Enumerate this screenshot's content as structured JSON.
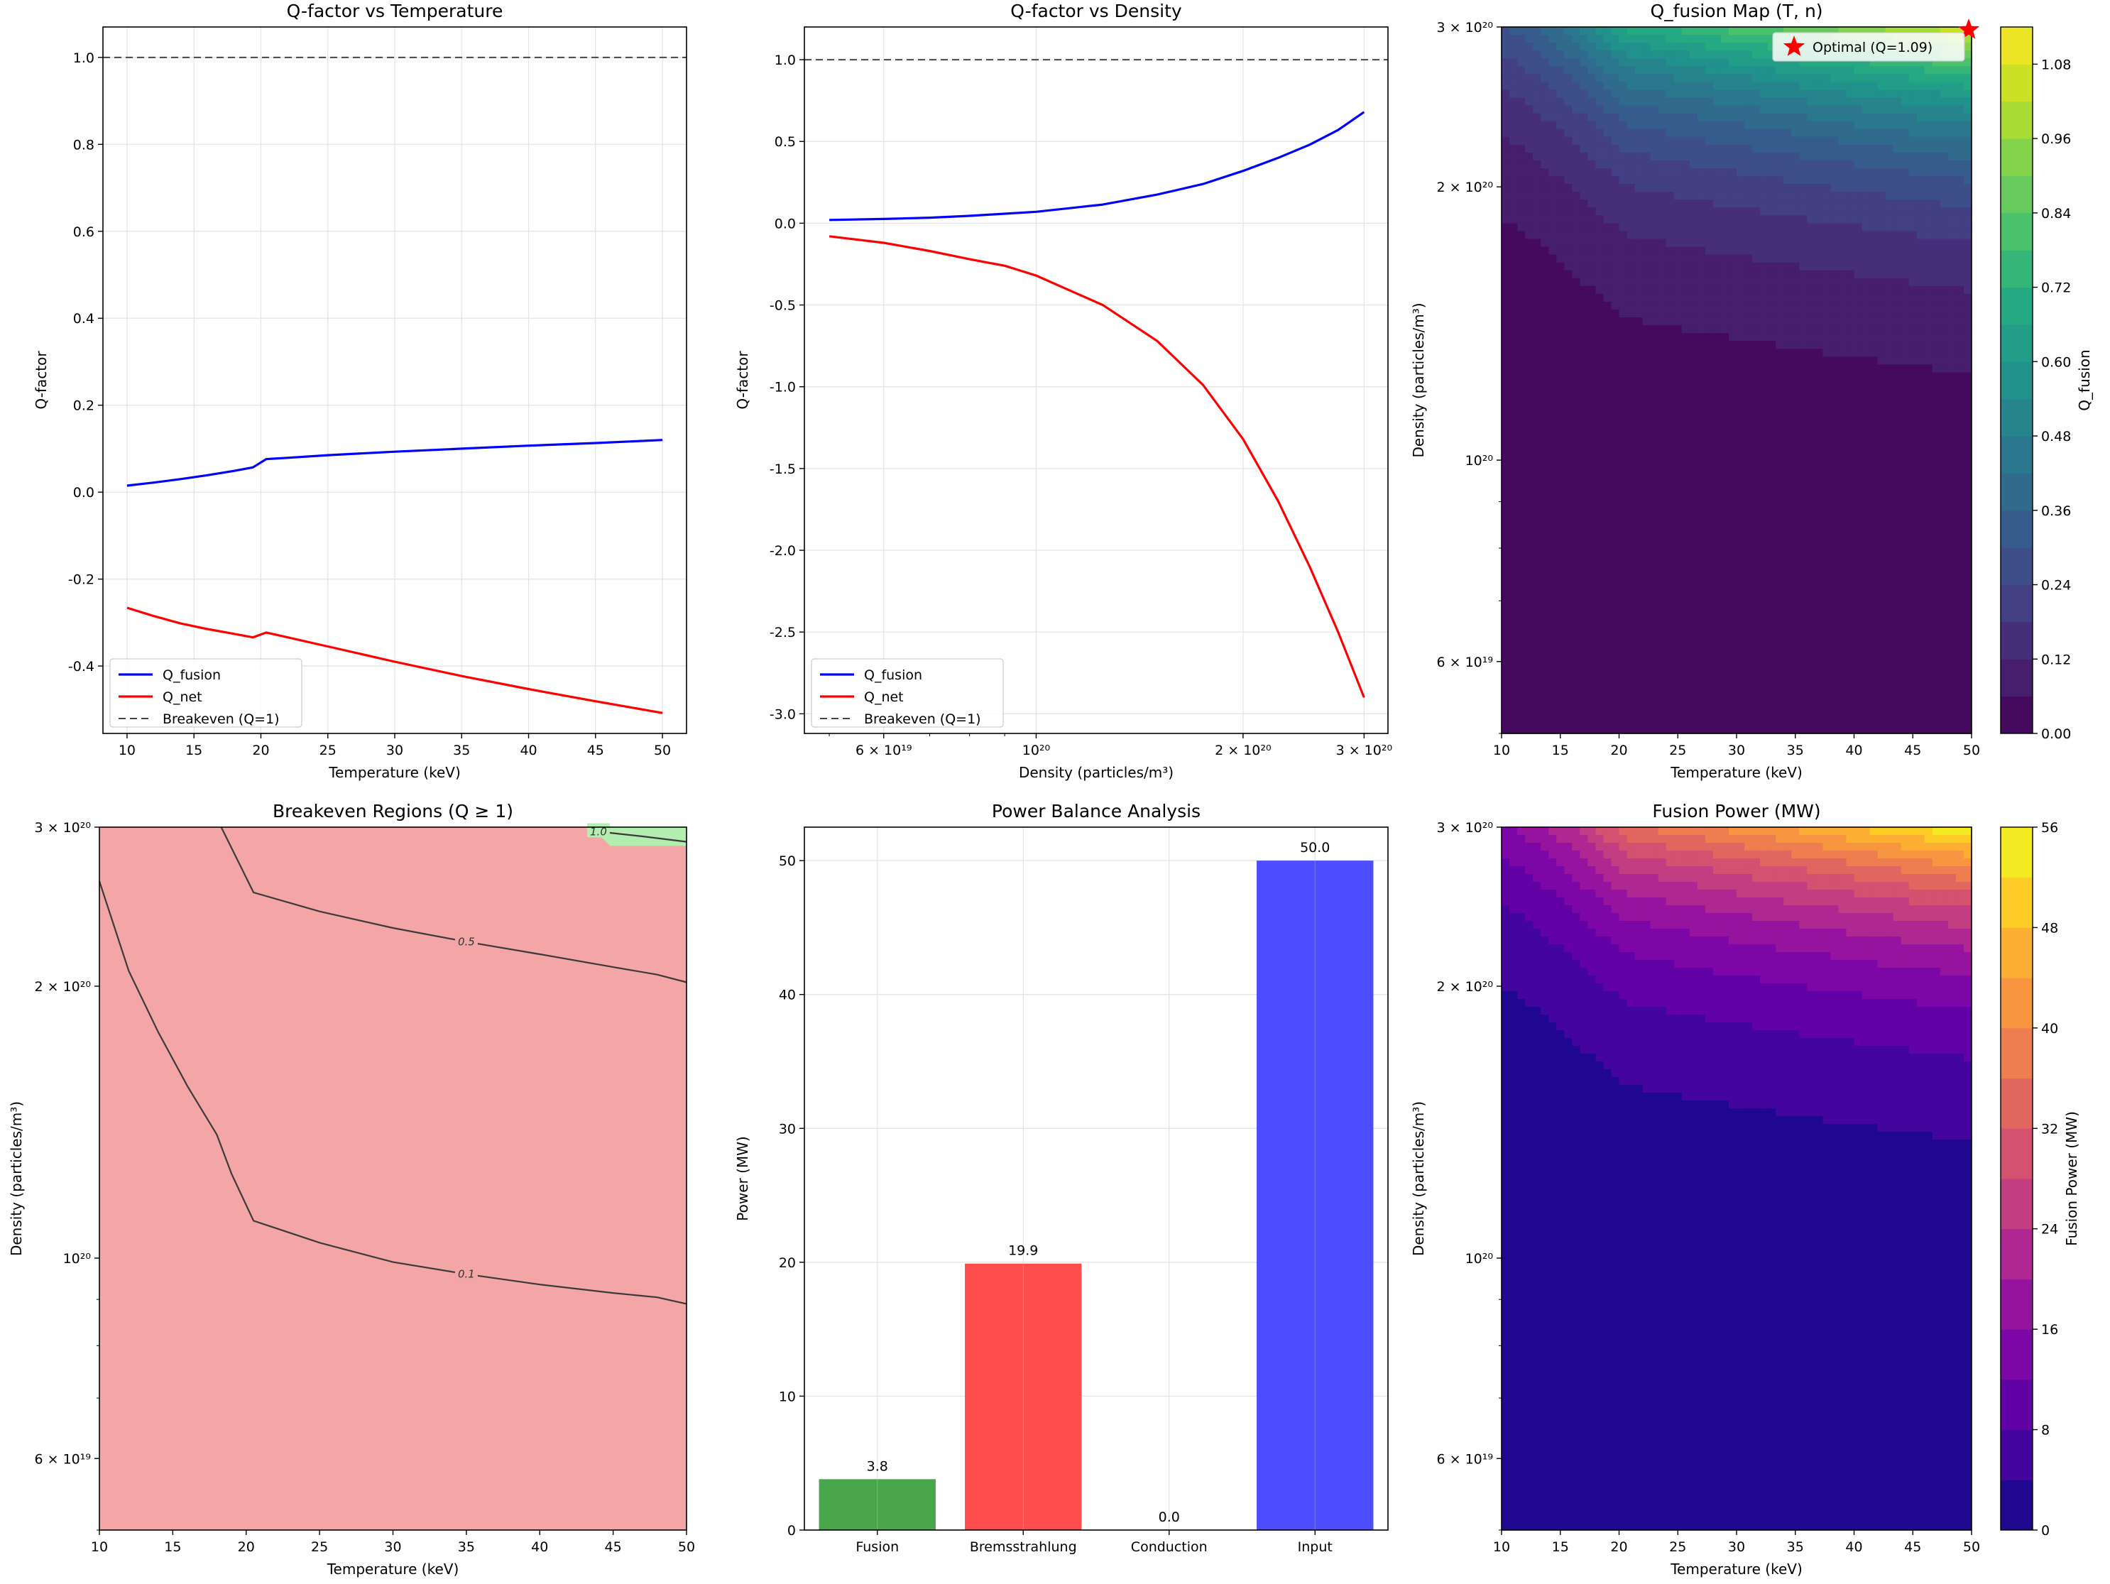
{
  "chart_data": [
    {
      "id": "p1",
      "type": "line",
      "title": "Q-factor vs Temperature",
      "xlabel": "Temperature (keV)",
      "ylabel": "Q-factor",
      "xlim": [
        8.2,
        51.8
      ],
      "ylim": [
        -0.555,
        1.07
      ],
      "xticks": [
        10,
        15,
        20,
        25,
        30,
        35,
        40,
        45,
        50
      ],
      "yticks": [
        -0.4,
        -0.2,
        0.0,
        0.2,
        0.4,
        0.6,
        0.8,
        1.0
      ],
      "grid": true,
      "legend": "lower-left",
      "series": [
        {
          "name": "Q_fusion",
          "color": "#0000ff",
          "dashed": false,
          "x": [
            10,
            12,
            14,
            16,
            18,
            19.4,
            20.4,
            22,
            25,
            30,
            35,
            40,
            45,
            50
          ],
          "y": [
            0.015,
            0.022,
            0.03,
            0.039,
            0.049,
            0.057,
            0.076,
            0.079,
            0.085,
            0.093,
            0.1,
            0.107,
            0.113,
            0.12
          ]
        },
        {
          "name": "Q_net",
          "color": "#ff0000",
          "dashed": false,
          "x": [
            10,
            12,
            14,
            16,
            18,
            19.4,
            20.4,
            22,
            25,
            30,
            35,
            40,
            45,
            50
          ],
          "y": [
            -0.266,
            -0.285,
            -0.302,
            -0.315,
            -0.326,
            -0.334,
            -0.323,
            -0.334,
            -0.355,
            -0.39,
            -0.423,
            -0.453,
            -0.481,
            -0.508
          ]
        },
        {
          "name": "Breakeven (Q=1)",
          "color": "#444444",
          "dashed": true,
          "x": [
            8.2,
            51.8
          ],
          "y": [
            1.0,
            1.0
          ]
        }
      ]
    },
    {
      "id": "p2",
      "type": "line",
      "title": "Q-factor vs Density",
      "xlabel": "Density (particles/m³)",
      "ylabel": "Q-factor",
      "xscale": "log",
      "xlim": [
        4.6e+19,
        3.25e+20
      ],
      "ylim": [
        -3.12,
        1.2
      ],
      "xticks": [
        {
          "v": 6e+19,
          "label": "6 × 10¹⁹"
        },
        {
          "v": 1e+20,
          "label": "10²⁰"
        },
        {
          "v": 2e+20,
          "label": "2 × 10²⁰"
        },
        {
          "v": 3e+20,
          "label": "3 × 10²⁰"
        }
      ],
      "yticks": [
        -3.0,
        -2.5,
        -2.0,
        -1.5,
        -1.0,
        -0.5,
        0.0,
        0.5,
        1.0
      ],
      "grid": true,
      "legend": "lower-left",
      "series": [
        {
          "name": "Q_fusion",
          "color": "#0000ff",
          "dashed": false,
          "x": [
            5e+19,
            6e+19,
            7e+19,
            8e+19,
            1e+20,
            1.25e+20,
            1.5e+20,
            1.75e+20,
            2e+20,
            2.25e+20,
            2.5e+20,
            2.75e+20,
            3e+20
          ],
          "y": [
            0.02,
            0.026,
            0.034,
            0.045,
            0.07,
            0.114,
            0.175,
            0.24,
            0.32,
            0.4,
            0.48,
            0.57,
            0.68
          ]
        },
        {
          "name": "Q_net",
          "color": "#ff0000",
          "dashed": false,
          "x": [
            5e+19,
            6e+19,
            7e+19,
            8e+19,
            9e+19,
            1e+20,
            1.25e+20,
            1.5e+20,
            1.75e+20,
            2e+20,
            2.25e+20,
            2.5e+20,
            2.75e+20,
            3e+20
          ],
          "y": [
            -0.08,
            -0.12,
            -0.17,
            -0.22,
            -0.26,
            -0.32,
            -0.5,
            -0.72,
            -0.99,
            -1.32,
            -1.7,
            -2.1,
            -2.5,
            -2.9
          ]
        },
        {
          "name": "Breakeven (Q=1)",
          "color": "#444444",
          "dashed": true,
          "x": [
            4.6e+19,
            3.25e+20
          ],
          "y": [
            1.0,
            1.0
          ]
        }
      ]
    },
    {
      "id": "p3",
      "type": "heatmap",
      "title": "Q_fusion Map (T, n)",
      "xlabel": "Temperature (keV)",
      "ylabel": "Density (particles/m³)",
      "yscale": "log",
      "xlim": [
        10,
        50
      ],
      "ylim": [
        5e+19,
        3e+20
      ],
      "xticks": [
        10,
        15,
        20,
        25,
        30,
        35,
        40,
        45,
        50
      ],
      "yticks": [
        {
          "v": 6e+19,
          "label": "6 × 10¹⁹"
        },
        {
          "v": 1e+20,
          "label": "10²⁰"
        },
        {
          "v": 2e+20,
          "label": "2 × 10²⁰"
        },
        {
          "v": 3e+20,
          "label": "3 × 10²⁰"
        }
      ],
      "colormap": "viridis",
      "colorbar_label": "Q_fusion",
      "colorbar_range": [
        0,
        1.14
      ],
      "colorbar_ticks": [
        "0.00",
        "0.12",
        "0.24",
        "0.36",
        "0.48",
        "0.60",
        "0.72",
        "0.84",
        "0.96",
        "1.08"
      ],
      "level_step": 0.06,
      "field_max": 1.09,
      "marker": {
        "label": "Optimal (Q=1.09)",
        "x": 50,
        "y": 3e+20,
        "color": "#ff0000"
      },
      "legend": "top-right"
    },
    {
      "id": "p4",
      "type": "heatmap",
      "title": "Breakeven Regions (Q ≥ 1)",
      "xlabel": "Temperature (keV)",
      "ylabel": "Density (particles/m³)",
      "yscale": "log",
      "xlim": [
        10,
        50
      ],
      "ylim": [
        5e+19,
        3e+20
      ],
      "xticks": [
        10,
        15,
        20,
        25,
        30,
        35,
        40,
        45,
        50
      ],
      "yticks": [
        {
          "v": 6e+19,
          "label": "6 × 10¹⁹"
        },
        {
          "v": 1e+20,
          "label": "10²⁰"
        },
        {
          "v": 2e+20,
          "label": "2 × 10²⁰"
        },
        {
          "v": 3e+20,
          "label": "3 × 10²⁰"
        }
      ],
      "regions": {
        "below": "#f4a5a6",
        "above": "#b3eeb0"
      },
      "contours": [
        {
          "level": "0.1",
          "label": "0.1"
        },
        {
          "level": "0.5",
          "label": "0.5"
        },
        {
          "level": "1.0",
          "label": "1.0"
        }
      ]
    },
    {
      "id": "p5",
      "type": "bar",
      "title": "Power Balance Analysis",
      "xlabel": "",
      "ylabel": "Power (MW)",
      "ylim": [
        0,
        52.5
      ],
      "yticks": [
        0,
        10,
        20,
        30,
        40,
        50
      ],
      "grid": true,
      "categories": [
        "Fusion",
        "Bremsstrahlung",
        "Conduction",
        "Input"
      ],
      "values": [
        3.8,
        19.9,
        0.0,
        50.0
      ],
      "value_labels": [
        "3.8",
        "19.9",
        "0.0",
        "50.0"
      ],
      "colors": [
        "#4aa64a",
        "#ff4d4d",
        "#4d4dff",
        "#4d4dff"
      ]
    },
    {
      "id": "p6",
      "type": "heatmap",
      "title": "Fusion Power (MW)",
      "xlabel": "Temperature (keV)",
      "ylabel": "Density (particles/m³)",
      "yscale": "log",
      "xlim": [
        10,
        50
      ],
      "ylim": [
        5e+19,
        3e+20
      ],
      "xticks": [
        10,
        15,
        20,
        25,
        30,
        35,
        40,
        45,
        50
      ],
      "yticks": [
        {
          "v": 6e+19,
          "label": "6 × 10¹⁹"
        },
        {
          "v": 1e+20,
          "label": "10²⁰"
        },
        {
          "v": 2e+20,
          "label": "2 × 10²⁰"
        },
        {
          "v": 3e+20,
          "label": "3 × 10²⁰"
        }
      ],
      "colormap": "plasma",
      "colorbar_label": "Fusion Power (MW)",
      "colorbar_range": [
        0,
        56
      ],
      "colorbar_ticks": [
        "0",
        "8",
        "16",
        "24",
        "32",
        "40",
        "48",
        "56"
      ],
      "level_step": 4,
      "field_max": 56
    }
  ]
}
